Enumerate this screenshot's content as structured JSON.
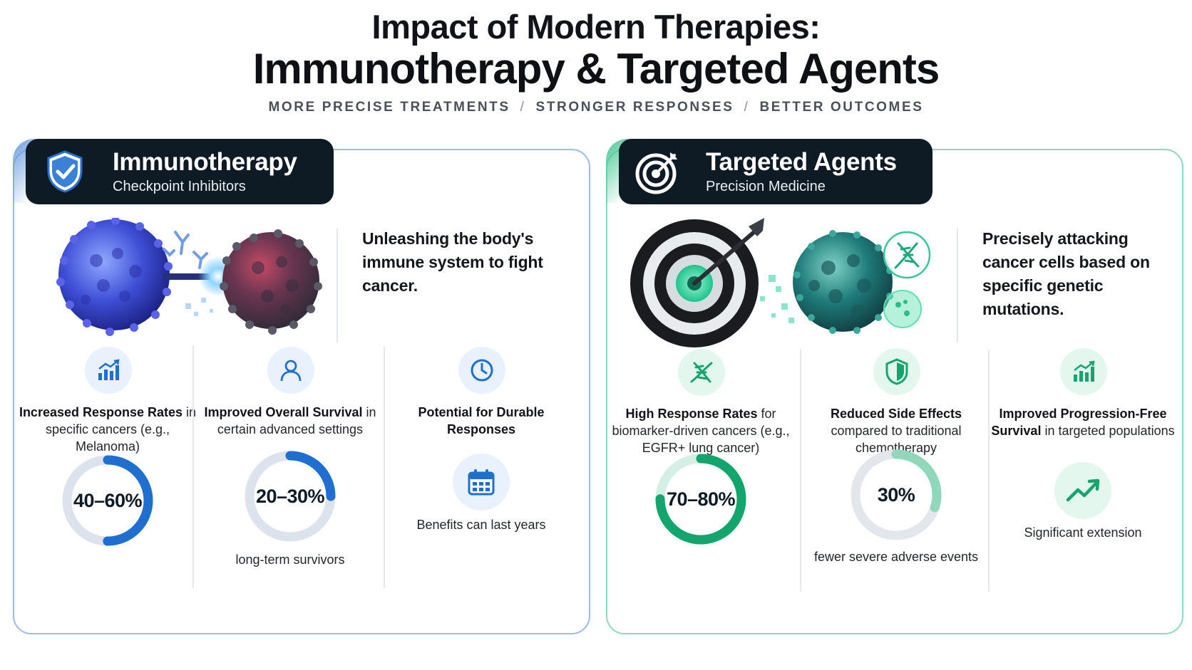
{
  "header": {
    "title_line1": "Impact of Modern Therapies:",
    "title_line2": "Immunotherapy & Targeted Agents",
    "tagline": [
      "MORE PRECISE TREATMENTS",
      "STRONGER RESPONSES",
      "BETTER OUTCOMES"
    ],
    "tagline_separator": "/"
  },
  "panels": [
    {
      "title": "Immunotherapy",
      "subtitle": "Checkpoint Inhibitors",
      "badge_icon": "shield-check-icon",
      "accent": "#1f6fd1",
      "lead": "Unleashing the body's immune system to fight cancer.",
      "stats": [
        {
          "icon": "bar-chart-icon",
          "bold": "Increased Response Rates",
          "rest": " in specific cancers (e.g., Melanoma)",
          "ring_value": "40–60%",
          "ring_fraction": 0.5,
          "caption": ""
        },
        {
          "icon": "person-icon",
          "bold": "Improved Overall Survival",
          "rest": " in certain advanced settings",
          "ring_value": "20–30%",
          "ring_fraction": 0.25,
          "caption": "long-term survivors"
        },
        {
          "icon": "clock-icon",
          "bold": "Potential for Durable Responses",
          "rest": "",
          "big_icon": "calendar-icon",
          "caption": "Benefits can last years"
        }
      ]
    },
    {
      "title": "Targeted Agents",
      "subtitle": "Precision Medicine",
      "badge_icon": "target-icon",
      "accent": "#14a56f",
      "lead": "Precisely attacking cancer cells based on specific genetic mutations.",
      "stats": [
        {
          "icon": "dna-icon",
          "bold": "High Response Rates",
          "rest": " for biomarker-driven cancers (e.g., EGFR+ lung cancer)",
          "ring_value": "70–80%",
          "ring_fraction": 0.75,
          "caption": ""
        },
        {
          "icon": "shield-icon",
          "bold": "Reduced Side Effects",
          "rest": " compared to traditional chemotherapy",
          "ring_value": "30%",
          "ring_fraction": 0.3,
          "caption": "fewer severe adverse events"
        },
        {
          "icon": "bar-chart-icon",
          "bold": "Improved Progression-Free Survival",
          "rest": " in targeted populations",
          "big_icon": "trend-up-icon",
          "caption": "Significant extension"
        }
      ]
    }
  ]
}
